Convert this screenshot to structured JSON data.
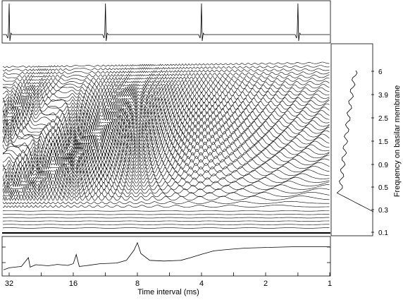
{
  "chart_data": [
    {
      "panel": "top",
      "type": "line",
      "description_free": true,
      "series": [
        {
          "name": "",
          "peaks_at_time_ms": [
            32,
            11.3,
            4.0,
            1.41
          ]
        }
      ],
      "ylim": [
        -1,
        1
      ]
    },
    {
      "panel": "main",
      "type": "line",
      "xlabel": "Time interval (ms)",
      "x_scale": "log2-reversed",
      "xlim": [
        36,
        1
      ],
      "ylabel": "Frequency on basilar membrane",
      "y_ticks": [
        "0.1",
        "0.3",
        "0.5",
        "0.9",
        "1.5",
        "2.5",
        "3.9",
        "6"
      ],
      "channel_count": 48,
      "right_profile_series": "summary across time per frequency channel"
    },
    {
      "panel": "bottom",
      "type": "line",
      "x_ticks": [
        "32",
        "16",
        "8",
        "4",
        "2",
        "1"
      ],
      "x_tick_values": [
        32,
        16,
        8,
        4,
        2,
        1
      ],
      "series": [
        {
          "name": "",
          "points": [
            [
              34,
              0.12
            ],
            [
              32,
              0.18
            ],
            [
              30,
              0.2
            ],
            [
              28,
              0.22
            ],
            [
              26,
              0.48
            ],
            [
              25.5,
              0.2
            ],
            [
              24,
              0.27
            ],
            [
              21,
              0.24
            ],
            [
              19,
              0.28
            ],
            [
              17,
              0.25
            ],
            [
              16,
              0.3
            ],
            [
              15.5,
              0.57
            ],
            [
              15,
              0.22
            ],
            [
              14,
              0.24
            ],
            [
              12,
              0.3
            ],
            [
              10,
              0.32
            ],
            [
              9,
              0.4
            ],
            [
              8.3,
              0.7
            ],
            [
              8,
              0.92
            ],
            [
              7.7,
              0.6
            ],
            [
              7,
              0.4
            ],
            [
              6,
              0.38
            ],
            [
              5,
              0.4
            ],
            [
              4.5,
              0.48
            ],
            [
              4,
              0.58
            ],
            [
              3.5,
              0.68
            ],
            [
              3,
              0.72
            ],
            [
              2.5,
              0.76
            ],
            [
              2,
              0.78
            ],
            [
              1.5,
              0.8
            ],
            [
              1,
              0.8
            ]
          ]
        }
      ]
    }
  ]
}
